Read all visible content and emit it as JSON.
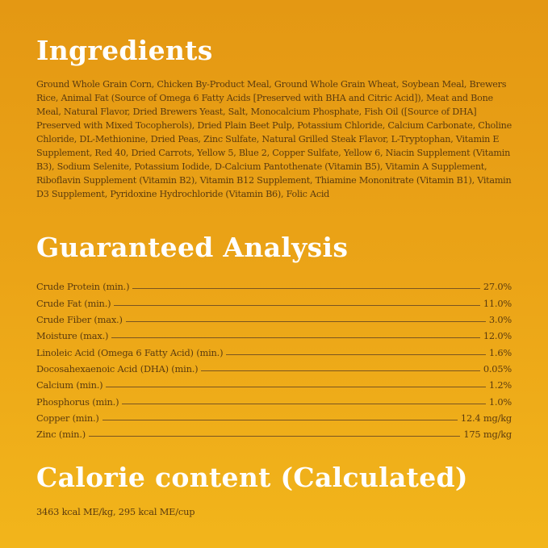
{
  "ingredients": {
    "title": "Ingredients",
    "text": "Ground Whole Grain Corn, Chicken By-Product Meal, Ground Whole Grain Wheat, Soybean Meal, Brewers Rice, Animal Fat (Source of Omega 6 Fatty Acids [Preserved with BHA and Citric Acid]), Meat and Bone Meal, Natural Flavor, Dried Brewers Yeast, Salt, Monocalcium Phosphate, Fish Oil ([Source of DHA] Preserved with Mixed Tocopherols), Dried Plain Beet Pulp, Potassium Chloride, Calcium Carbonate, Choline Chloride, DL-Methionine, Dried Peas, Zinc Sulfate, Natural Grilled Steak Flavor, L-Tryptophan, Vitamin E Supplement, Red 40, Dried Carrots, Yellow 5, Blue 2, Copper Sulfate, Yellow 6, Niacin Supplement (Vitamin B3), Sodium Selenite, Potassium Iodide, D-Calcium Pantothenate (Vitamin B5), Vitamin A Supplement, Riboflavin Supplement (Vitamin B2), Vitamin B12 Supplement, Thiamine Mononitrate (Vitamin B1), Vitamin D3 Supplement, Pyridoxine Hydrochloride (Vitamin B6), Folic Acid"
  },
  "analysis": {
    "title": "Guaranteed Analysis",
    "rows": [
      {
        "label": "Crude Protein (min.)",
        "value": "27.0%"
      },
      {
        "label": "Crude Fat (min.)",
        "value": "11.0%"
      },
      {
        "label": "Crude Fiber (max.)",
        "value": "3.0%"
      },
      {
        "label": "Moisture (max.)",
        "value": "12.0%"
      },
      {
        "label": "Linoleic Acid (Omega 6 Fatty Acid) (min.)",
        "value": "1.6%"
      },
      {
        "label": "Docosahexaenoic Acid (DHA) (min.)",
        "value": "0.05%"
      },
      {
        "label": "Calcium (min.)",
        "value": "1.2%"
      },
      {
        "label": "Phosphorus (min.)",
        "value": "1.0%"
      },
      {
        "label": "Copper (min.)",
        "value": "12.4 mg/kg"
      },
      {
        "label": "Zinc (min.)",
        "value": "175 mg/kg"
      }
    ]
  },
  "calorie": {
    "title": "Calorie content  (Calculated)",
    "text": "3463 kcal ME/kg, 295 kcal ME/cup"
  },
  "colors": {
    "background_top": "#e49813",
    "background_bottom": "#f2b51b",
    "heading": "#ffffff",
    "body_text": "#5b3b0e"
  }
}
